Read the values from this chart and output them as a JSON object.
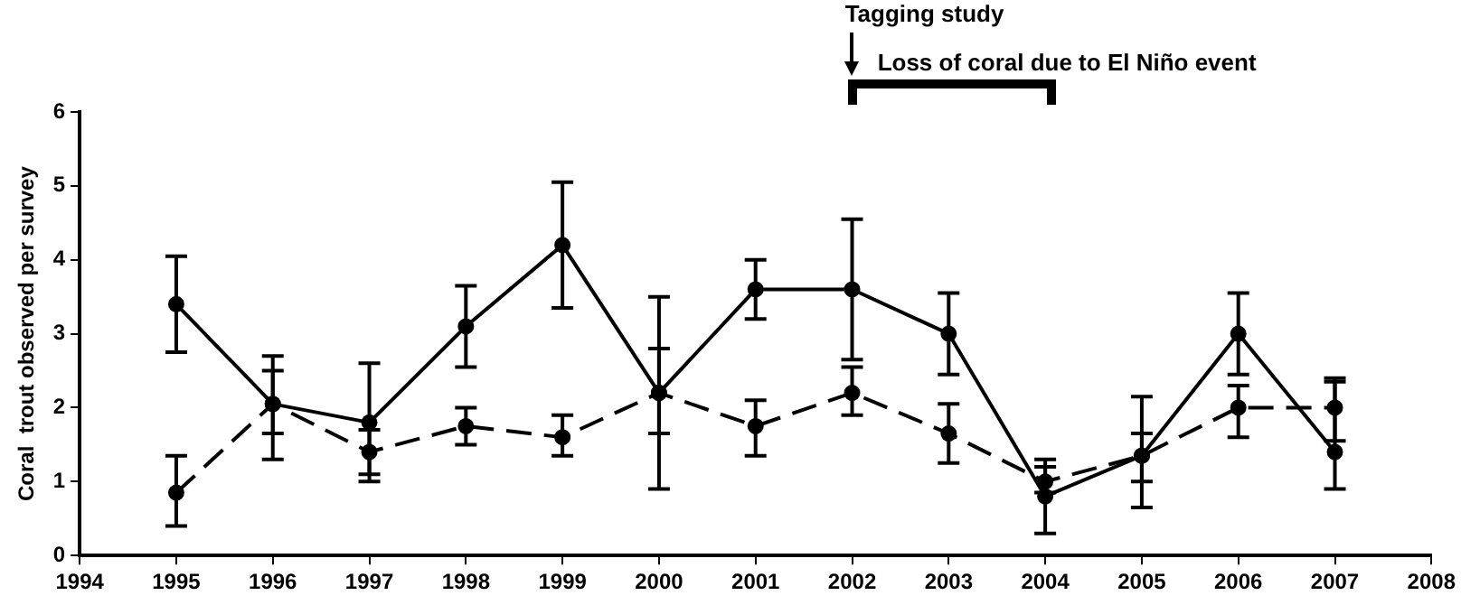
{
  "chart_data": {
    "type": "line",
    "ylabel": "Coral  trout observed per survey",
    "x": [
      1995,
      1996,
      1997,
      1998,
      1999,
      2000,
      2001,
      2002,
      2003,
      2004,
      2005,
      2006,
      2007
    ],
    "xlim": [
      1994,
      2008
    ],
    "xticks": [
      1994,
      1995,
      1996,
      1997,
      1998,
      1999,
      2000,
      2001,
      2002,
      2003,
      2004,
      2005,
      2006,
      2007,
      2008
    ],
    "ylim": [
      0,
      6
    ],
    "yticks": [
      0,
      1,
      2,
      3,
      4,
      5,
      6
    ],
    "series": [
      {
        "color": "#000000",
        "line_style": "solid",
        "values": [
          3.4,
          2.05,
          1.8,
          3.1,
          4.2,
          2.2,
          3.6,
          3.6,
          3.0,
          0.8,
          1.35,
          3.0,
          1.4
        ],
        "errors": [
          [
            2.75,
            4.05
          ],
          [
            1.3,
            2.7
          ],
          [
            1.0,
            2.6
          ],
          [
            2.55,
            3.65
          ],
          [
            3.35,
            5.05
          ],
          [
            0.9,
            3.5
          ],
          [
            3.2,
            4.0
          ],
          [
            2.65,
            4.55
          ],
          [
            2.45,
            3.55
          ],
          [
            0.3,
            1.3
          ],
          [
            0.65,
            2.15
          ],
          [
            2.45,
            3.55
          ],
          [
            0.9,
            2.4
          ]
        ]
      },
      {
        "color": "#000000",
        "line_style": "dashed",
        "values": [
          0.85,
          2.05,
          1.4,
          1.75,
          1.6,
          2.2,
          1.75,
          2.2,
          1.65,
          1.0,
          1.35,
          2.0,
          2.0
        ],
        "errors": [
          [
            0.4,
            1.35
          ],
          [
            1.65,
            2.5
          ],
          [
            1.1,
            1.7
          ],
          [
            1.5,
            2.0
          ],
          [
            1.35,
            1.9
          ],
          [
            1.65,
            2.8
          ],
          [
            1.35,
            2.1
          ],
          [
            1.9,
            2.55
          ],
          [
            1.25,
            2.05
          ],
          [
            0.85,
            1.2
          ],
          [
            1.0,
            1.65
          ],
          [
            1.6,
            2.3
          ],
          [
            1.55,
            2.35
          ]
        ]
      }
    ],
    "marker": "circle",
    "grid": false,
    "legend": false,
    "annotations": [
      "Tagging study",
      "Loss of coral due to El Niño event"
    ]
  }
}
